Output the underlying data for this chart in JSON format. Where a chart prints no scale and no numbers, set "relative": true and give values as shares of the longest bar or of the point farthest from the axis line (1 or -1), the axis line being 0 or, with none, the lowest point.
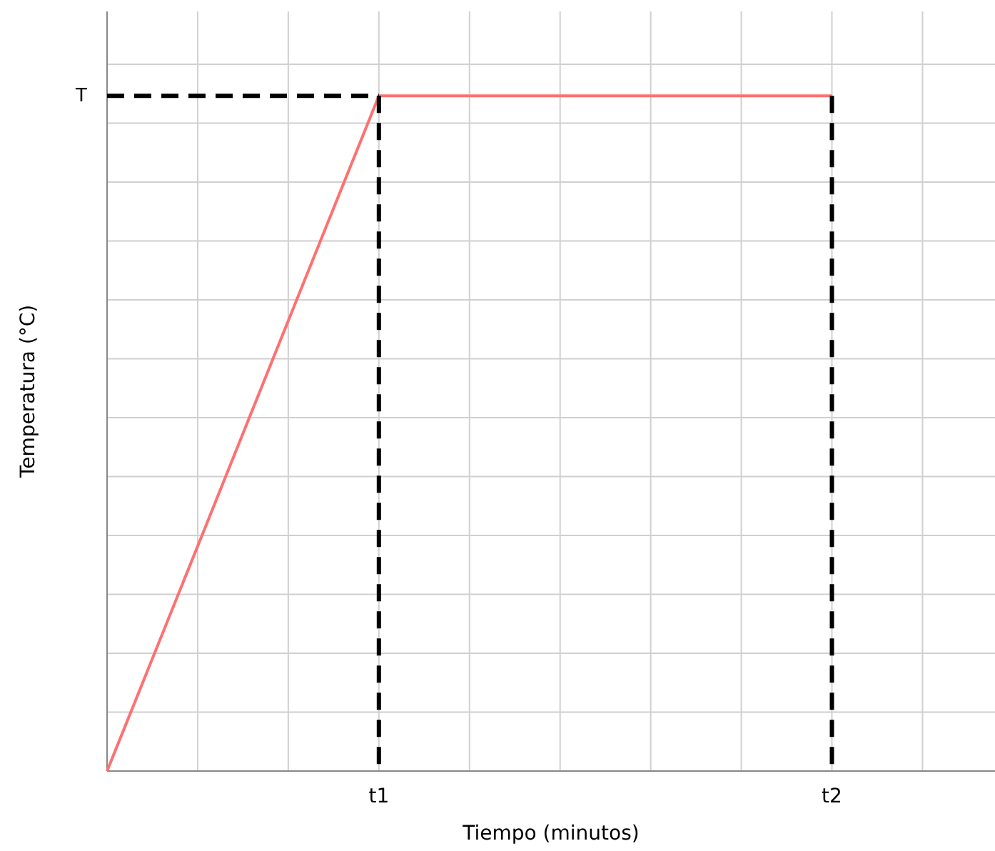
{
  "chart_data": {
    "type": "line",
    "relative": true,
    "xlabel": "Tiempo (minutos)",
    "ylabel": "Temperatura (°C)",
    "categories": [
      null,
      null,
      null,
      "t1",
      null,
      null,
      null,
      null,
      "t2",
      null
    ],
    "grid": true,
    "marker": "none",
    "annotations": [
      "T"
    ],
    "series": [
      {
        "color": "#ff7070",
        "line_style": "solid",
        "values": [
          0,
          0.333,
          0.667,
          1,
          1,
          1,
          1,
          1,
          1,
          null
        ]
      },
      {
        "color": "#000000",
        "line_style": "dashed",
        "values": [
          1,
          1,
          1,
          1,
          null,
          null,
          null,
          null,
          null,
          null
        ]
      },
      {
        "color": "#000000",
        "line_style": "dashed",
        "x": [
          "t1",
          "t1"
        ],
        "values": [
          1,
          0
        ]
      },
      {
        "color": "#000000",
        "line_style": "dashed",
        "x": [
          "t2",
          "t2"
        ],
        "values": [
          1,
          0
        ]
      }
    ]
  }
}
